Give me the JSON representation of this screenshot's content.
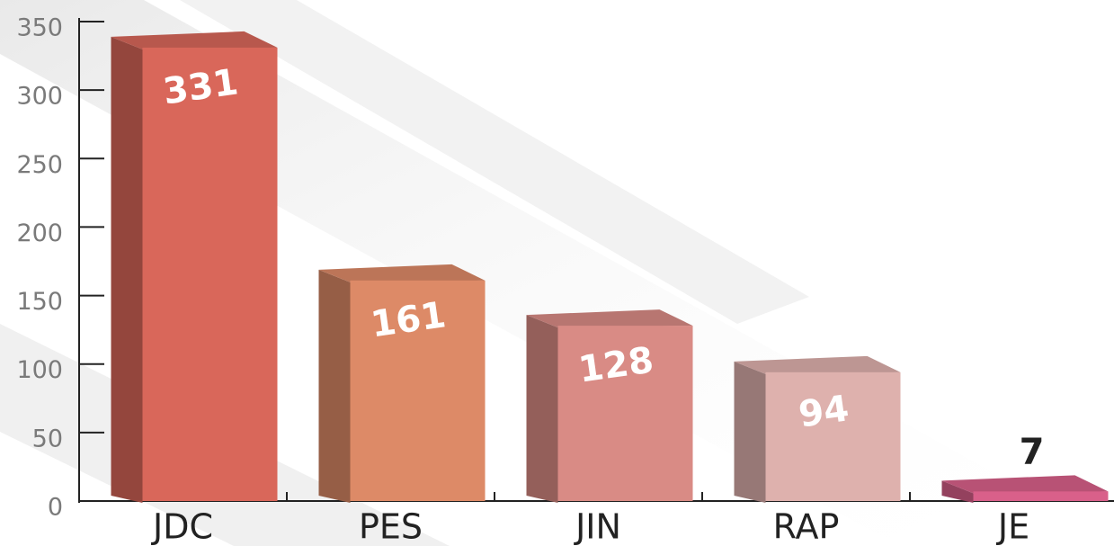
{
  "chart_data": {
    "type": "bar3d",
    "categories": [
      "JDC",
      "PES",
      "JIN",
      "RAP",
      "JE"
    ],
    "values": [
      331,
      161,
      128,
      94,
      7
    ],
    "colors": [
      "#d9675a",
      "#dd8a67",
      "#d98b85",
      "#deb1ad",
      "#d9608a"
    ],
    "ylim": [
      0,
      350
    ],
    "yticks": [
      0,
      50,
      100,
      150,
      200,
      250,
      300,
      350
    ]
  }
}
